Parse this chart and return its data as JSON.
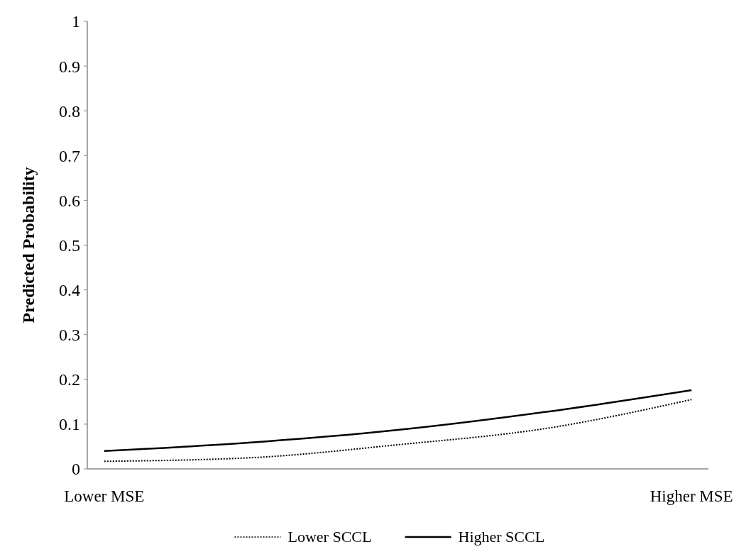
{
  "chart_data": {
    "type": "line",
    "ylabel": "Predicted Probability",
    "categories": [
      "Lower MSE",
      null,
      null,
      null,
      "Higher MSE"
    ],
    "series": [
      {
        "name": "Lower SCCL",
        "color": "#000000",
        "line_style": "dotted",
        "values": [
          0.017,
          0.025,
          0.054,
          0.09,
          0.155
        ]
      },
      {
        "name": "Higher SCCL",
        "color": "#000000",
        "line_style": "solid",
        "values": [
          0.04,
          0.059,
          0.087,
          0.127,
          0.176
        ]
      }
    ],
    "ylim": [
      0,
      1
    ],
    "yticks": [
      0,
      0.1,
      0.2,
      0.3,
      0.4,
      0.5,
      0.6,
      0.7,
      0.8,
      0.9,
      1
    ],
    "marker": "none",
    "grid": false,
    "legend": "bottom"
  }
}
